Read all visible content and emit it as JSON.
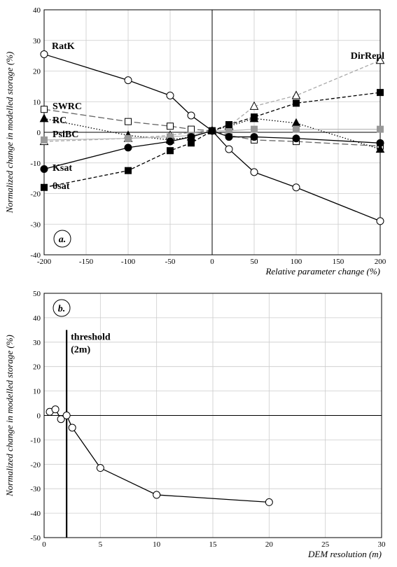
{
  "chart_data": [
    {
      "type": "line",
      "panel_label": "a.",
      "xlabel": "Relative parameter change (%)",
      "ylabel": "Normalized change in modelled storage (%)",
      "xlim": [
        -200,
        200
      ],
      "ylim": [
        -40,
        40
      ],
      "xticks": [
        -200,
        -150,
        -100,
        -50,
        0,
        50,
        100,
        150,
        200
      ],
      "yticks": [
        -40,
        -30,
        -20,
        -10,
        0,
        10,
        20,
        30,
        40
      ],
      "x": [
        -200,
        -100,
        -50,
        -25,
        0,
        20,
        50,
        100,
        200
      ],
      "series": [
        {
          "name": "RatK",
          "marker": "circle-open",
          "line": "solid",
          "color": "#000000",
          "values": [
            25.5,
            17,
            12,
            5.5,
            0.5,
            -5.5,
            -13,
            -18,
            -29
          ]
        },
        {
          "name": "DirRepl",
          "marker": "triangle-open",
          "line": "dashed",
          "color": "#aaaaaa",
          "values": [
            -3,
            -2,
            -1,
            0,
            0.5,
            2,
            8.5,
            12,
            23.5
          ]
        },
        {
          "name": "SWRC",
          "marker": "square-open",
          "line": "longdash",
          "color": "#666666",
          "values": [
            7.5,
            3.5,
            2,
            1,
            0.5,
            -1,
            -2.5,
            -3,
            -4.5
          ]
        },
        {
          "name": "RC",
          "marker": "triangle-filled",
          "line": "dotted",
          "color": "#000000",
          "values": [
            4.5,
            -1,
            -2.5,
            -1.5,
            0.5,
            2,
            4.5,
            3,
            -5.5
          ]
        },
        {
          "name": "PsiBC",
          "marker": "square-grey",
          "line": "solid",
          "color": "#bbbbbb",
          "values": [
            -2.5,
            -2,
            -1.5,
            -1,
            0.5,
            0.5,
            1,
            1,
            1
          ]
        },
        {
          "name": "Ksat",
          "marker": "circle-filled",
          "line": "solid",
          "color": "#000000",
          "values": [
            -12,
            -5,
            -3,
            -1.5,
            0.5,
            -1.5,
            -1.5,
            -2,
            -3.5
          ]
        },
        {
          "name": "θsat",
          "marker": "square-filled",
          "line": "dashed",
          "color": "#000000",
          "values": [
            -18,
            -12.5,
            -6,
            -3.5,
            0.5,
            2.5,
            5,
            9.5,
            13
          ]
        }
      ]
    },
    {
      "type": "line",
      "panel_label": "b.",
      "xlabel": "DEM resolution (m)",
      "ylabel": "Normalized change in modelled storage (%)",
      "xlim": [
        0,
        30
      ],
      "ylim": [
        -50,
        50
      ],
      "xticks": [
        0,
        5,
        10,
        15,
        20,
        25,
        30
      ],
      "yticks": [
        -50,
        -40,
        -30,
        -20,
        -10,
        0,
        10,
        20,
        30,
        40,
        50
      ],
      "threshold": {
        "x": 2,
        "label_line1": "threshold",
        "label_line2": "(2m)"
      },
      "series": [
        {
          "name": "",
          "marker": "circle-open",
          "line": "solid",
          "color": "#000000",
          "x": [
            0.5,
            1,
            1.5,
            2,
            2.5,
            5,
            10,
            20
          ],
          "values": [
            1.5,
            2.5,
            -1.5,
            0,
            -5,
            -21.5,
            -32.5,
            -35.5
          ]
        }
      ]
    }
  ]
}
